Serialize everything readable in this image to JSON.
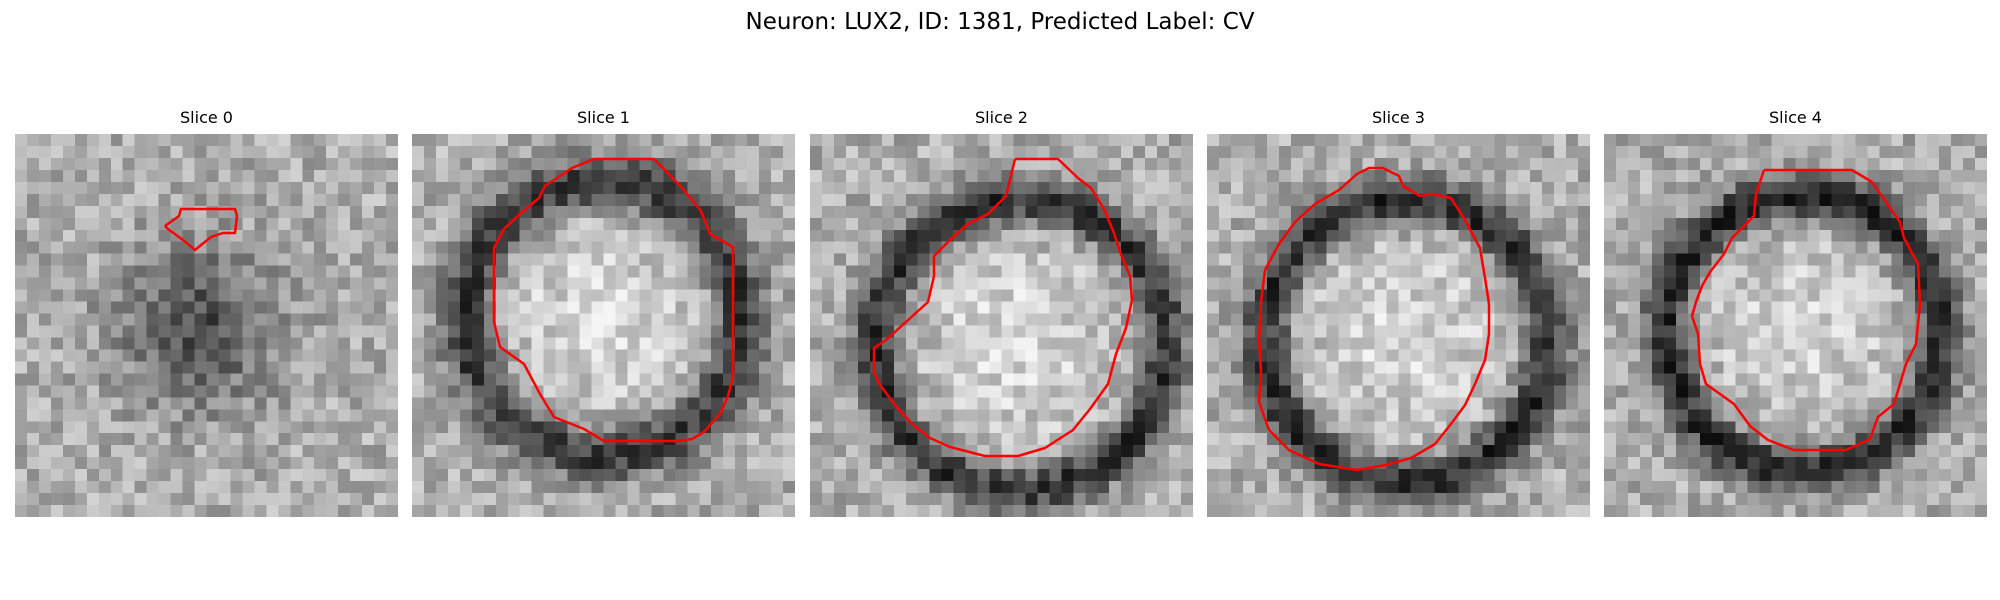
{
  "figure": {
    "title": "Neuron: LUX2, ID: 1381, Predicted Label: CV"
  },
  "panels": [
    {
      "title": "Slice 0"
    },
    {
      "title": "Slice 1"
    },
    {
      "title": "Slice 2"
    },
    {
      "title": "Slice 3"
    },
    {
      "title": "Slice 4"
    }
  ],
  "colors": {
    "contour": "#ff0000",
    "background": "#ffffff",
    "colormap": "grayscale"
  }
}
